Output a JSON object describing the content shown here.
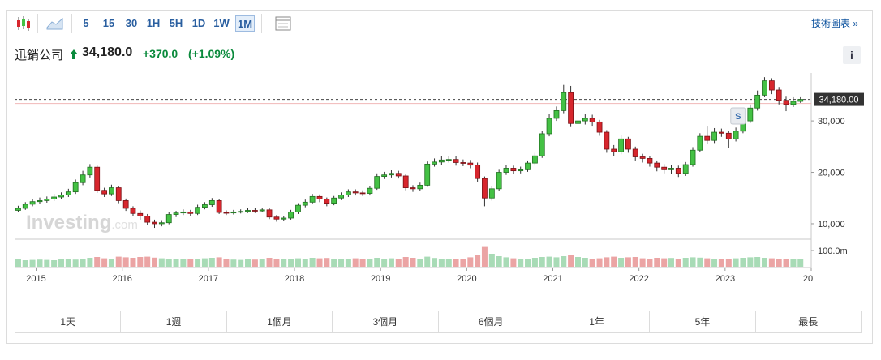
{
  "toolbar": {
    "intervals": [
      "5",
      "15",
      "30",
      "1H",
      "5H",
      "1D",
      "1W",
      "1M"
    ],
    "active_interval": 7,
    "link": "技術圖表 »"
  },
  "header": {
    "name": "迅銷公司",
    "price": "34,180.0",
    "change": "+370.0",
    "change_pct": "(+1.09%)",
    "info": "i"
  },
  "chart_data": {
    "type": "candlestick",
    "x": [
      2014.792,
      2014.875,
      2014.958,
      2015.042,
      2015.125,
      2015.208,
      2015.292,
      2015.375,
      2015.458,
      2015.542,
      2015.625,
      2015.708,
      2015.792,
      2015.875,
      2015.958,
      2016.042,
      2016.125,
      2016.208,
      2016.292,
      2016.375,
      2016.458,
      2016.542,
      2016.625,
      2016.708,
      2016.792,
      2016.875,
      2016.958,
      2017.042,
      2017.125,
      2017.208,
      2017.292,
      2017.375,
      2017.458,
      2017.542,
      2017.625,
      2017.708,
      2017.792,
      2017.875,
      2017.958,
      2018.042,
      2018.125,
      2018.208,
      2018.292,
      2018.375,
      2018.458,
      2018.542,
      2018.625,
      2018.708,
      2018.792,
      2018.875,
      2018.958,
      2019.042,
      2019.125,
      2019.208,
      2019.292,
      2019.375,
      2019.458,
      2019.542,
      2019.625,
      2019.708,
      2019.792,
      2019.875,
      2019.958,
      2020.042,
      2020.125,
      2020.208,
      2020.292,
      2020.375,
      2020.458,
      2020.542,
      2020.625,
      2020.708,
      2020.792,
      2020.875,
      2020.958,
      2021.042,
      2021.125,
      2021.208,
      2021.292,
      2021.375,
      2021.458,
      2021.542,
      2021.625,
      2021.708,
      2021.792,
      2021.875,
      2021.958,
      2022.042,
      2022.125,
      2022.208,
      2022.292,
      2022.375,
      2022.458,
      2022.542,
      2022.625,
      2022.708,
      2022.792,
      2022.875,
      2022.958,
      2023.042,
      2023.125,
      2023.208,
      2023.292,
      2023.375,
      2023.458,
      2023.542,
      2023.625,
      2023.708,
      2023.792,
      2023.875
    ],
    "open": [
      12600,
      13000,
      13800,
      14300,
      14500,
      14800,
      15200,
      15600,
      16200,
      18000,
      19500,
      21000,
      16500,
      15800,
      17000,
      14500,
      13000,
      12000,
      11500,
      10300,
      10000,
      10200,
      11800,
      12100,
      12300,
      12000,
      13200,
      13700,
      14500,
      12200,
      12100,
      12300,
      12400,
      12600,
      12500,
      12700,
      11300,
      10900,
      11100,
      12300,
      13600,
      14200,
      15300,
      14800,
      14000,
      15000,
      15600,
      16200,
      16000,
      15900,
      16900,
      19200,
      19500,
      19800,
      19300,
      17000,
      16800,
      17500,
      21600,
      22000,
      22400,
      22500,
      21900,
      21800,
      21400,
      18800,
      15000,
      16800,
      20000,
      20800,
      20300,
      20500,
      21800,
      23200,
      27500,
      30500,
      32000,
      35500,
      29500,
      30000,
      30500,
      29800,
      27800,
      24500,
      24000,
      26500,
      24500,
      23000,
      22700,
      21800,
      21000,
      20500,
      20800,
      19800,
      21500,
      24300,
      27000,
      26200,
      27800,
      27600,
      26500,
      28000,
      30000,
      32500,
      35000,
      37800,
      36000,
      34000,
      33200,
      33800
    ],
    "high": [
      13500,
      14200,
      14800,
      15100,
      15300,
      15800,
      16100,
      16800,
      18600,
      20300,
      21600,
      21300,
      17000,
      17600,
      17400,
      14900,
      13400,
      12600,
      11900,
      10800,
      10700,
      12300,
      12500,
      12800,
      12700,
      13700,
      14200,
      15000,
      14800,
      12600,
      12700,
      12800,
      13000,
      13000,
      13100,
      13000,
      11700,
      11500,
      12700,
      14000,
      14700,
      15800,
      15700,
      15100,
      15400,
      16100,
      16700,
      16700,
      16500,
      17400,
      19800,
      20100,
      20400,
      20300,
      19600,
      17500,
      18000,
      22100,
      22700,
      23100,
      23200,
      23100,
      22500,
      22400,
      21900,
      19200,
      17300,
      20500,
      21400,
      21300,
      21100,
      22300,
      23800,
      28100,
      31300,
      32800,
      37000,
      36800,
      30800,
      31300,
      31200,
      30200,
      28200,
      25300,
      27200,
      26900,
      25000,
      23600,
      23200,
      22300,
      21600,
      21500,
      21300,
      22000,
      24900,
      27600,
      28900,
      28600,
      28500,
      28100,
      28700,
      30700,
      33200,
      35900,
      38500,
      38300,
      36600,
      34700,
      34600,
      34600
    ],
    "low": [
      12200,
      12700,
      13400,
      13900,
      14100,
      14400,
      14800,
      15200,
      15800,
      17500,
      19000,
      16000,
      15200,
      15400,
      14000,
      12500,
      11500,
      10800,
      9800,
      9200,
      9500,
      9900,
      11300,
      11700,
      11500,
      11700,
      12800,
      13300,
      11900,
      11700,
      11800,
      12000,
      12100,
      12100,
      12200,
      10900,
      10400,
      10500,
      10800,
      11900,
      13200,
      13800,
      14200,
      13400,
      13600,
      14600,
      15200,
      15500,
      15400,
      15500,
      16600,
      18700,
      19000,
      18800,
      16500,
      16200,
      16300,
      17200,
      21100,
      21500,
      21900,
      21300,
      21200,
      20800,
      18200,
      13400,
      14500,
      16400,
      19500,
      19700,
      19800,
      20100,
      21300,
      22800,
      27000,
      30000,
      31500,
      28800,
      28900,
      29300,
      28900,
      27100,
      23800,
      23200,
      23500,
      23800,
      22300,
      21900,
      21100,
      20200,
      19800,
      19700,
      19100,
      19300,
      21100,
      23900,
      25500,
      25700,
      26900,
      24800,
      26000,
      27600,
      29600,
      32000,
      34600,
      35200,
      33200,
      31900,
      32700,
      33500
    ],
    "close": [
      13000,
      13800,
      14300,
      14500,
      14800,
      15200,
      15600,
      16200,
      18000,
      19500,
      21000,
      16500,
      15800,
      17000,
      14500,
      13000,
      12000,
      11500,
      10300,
      10000,
      10200,
      11800,
      12100,
      12300,
      12000,
      13200,
      13700,
      14500,
      12200,
      12100,
      12300,
      12400,
      12600,
      12500,
      12700,
      11300,
      10900,
      11100,
      12300,
      13600,
      14200,
      15300,
      14800,
      14000,
      15000,
      15600,
      16200,
      16000,
      15900,
      16900,
      19200,
      19500,
      19800,
      19300,
      17000,
      16800,
      17500,
      21600,
      22000,
      22400,
      22500,
      21900,
      21800,
      21400,
      18800,
      15000,
      16800,
      20000,
      20800,
      20300,
      20500,
      21800,
      23200,
      27500,
      30500,
      32000,
      35500,
      29500,
      30000,
      30500,
      29800,
      27800,
      24500,
      24000,
      26500,
      24500,
      23000,
      22700,
      21800,
      21000,
      20500,
      20800,
      19800,
      21500,
      24300,
      27000,
      26200,
      27800,
      27600,
      26500,
      28000,
      30000,
      32500,
      35000,
      37800,
      36000,
      34000,
      33200,
      33800,
      34180
    ],
    "volume": [
      45,
      40,
      42,
      44,
      42,
      40,
      46,
      48,
      44,
      45,
      55,
      60,
      52,
      48,
      62,
      58,
      55,
      60,
      62,
      56,
      52,
      50,
      48,
      50,
      46,
      50,
      52,
      55,
      58,
      46,
      44,
      42,
      45,
      44,
      46,
      55,
      50,
      45,
      48,
      52,
      50,
      55,
      52,
      54,
      48,
      46,
      50,
      52,
      48,
      50,
      55,
      50,
      52,
      48,
      60,
      55,
      50,
      62,
      54,
      50,
      48,
      46,
      50,
      58,
      75,
      122,
      80,
      65,
      58,
      52,
      48,
      50,
      55,
      60,
      62,
      58,
      65,
      72,
      60,
      55,
      50,
      52,
      58,
      62,
      55,
      58,
      60,
      52,
      50,
      55,
      52,
      54,
      50,
      55,
      58,
      56,
      52,
      50,
      48,
      50,
      52,
      55,
      58,
      60,
      55,
      52,
      50,
      48,
      46,
      45
    ],
    "xlim": [
      2014.75,
      2024.0
    ],
    "xticks": [
      2015,
      2016,
      2017,
      2018,
      2019,
      2020,
      2021,
      2022,
      2023,
      {
        "value": 2024,
        "label": "20"
      }
    ],
    "ylim": [
      7000,
      39000
    ],
    "yticks": [
      {
        "value": 10000,
        "label": "10,000"
      },
      {
        "value": 20000,
        "label": "20,000"
      },
      {
        "value": 30000,
        "label": "30,000"
      }
    ],
    "volume_ylim": [
      0,
      165
    ],
    "volume_yticks": [
      {
        "value": 100,
        "label": "100.0m"
      }
    ],
    "last_price": 34180,
    "last_price_label": "34,180.00",
    "up_color": "#44c144",
    "down_color": "#d7262d",
    "volume_up_color": "#a8dbb6",
    "volume_down_color": "#eba4a4",
    "watermark": "Investing",
    "watermark_suffix": ".com",
    "marker": {
      "x": 2023.15,
      "label": "S"
    }
  },
  "tabs": [
    "1天",
    "1週",
    "1個月",
    "3個月",
    "6個月",
    "1年",
    "5年",
    "最長"
  ]
}
